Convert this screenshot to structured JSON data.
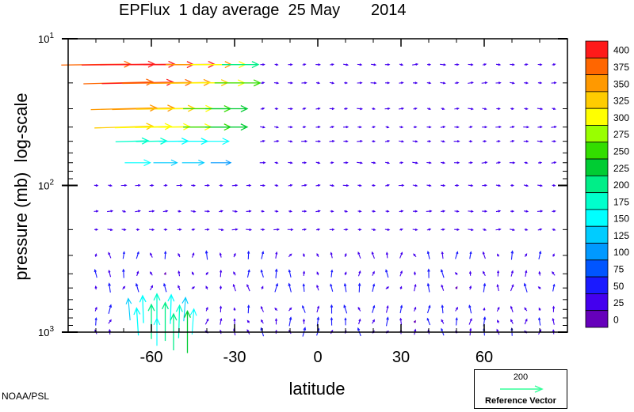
{
  "title": {
    "name": "EPFlux",
    "average": "1 day average",
    "date": "25 May",
    "year": "2014"
  },
  "credit": "NOAA/PSL",
  "reference_vector": {
    "value": "200",
    "label": "Reference Vector",
    "color": "#33ff99"
  },
  "chart_data": {
    "type": "vector field",
    "title": "EPFlux  1 day average  25 May       2014",
    "xlabel": "latitude",
    "ylabel": "pressure (mb)  log-scale",
    "x_ticks": [
      -60,
      -30,
      0,
      30,
      60
    ],
    "x_tick_labels": [
      "-60",
      "-30",
      "0",
      "30",
      "60"
    ],
    "xlim": [
      -90,
      90
    ],
    "y_scale": "log",
    "ylim": [
      1000,
      10
    ],
    "y_tick_labels": [
      {
        "base": "10",
        "exp": "1",
        "value": 10
      },
      {
        "base": "10",
        "exp": "2",
        "value": 100
      },
      {
        "base": "10",
        "exp": "3",
        "value": 1000
      }
    ],
    "colorbar": {
      "labels": [
        "400",
        "375",
        "350",
        "325",
        "300",
        "275",
        "250",
        "225",
        "200",
        "175",
        "150",
        "125",
        "100",
        "75",
        "50",
        "25",
        "0"
      ],
      "colors": [
        "#ff1a1a",
        "#ff6600",
        "#ff9900",
        "#ffcc00",
        "#ffff00",
        "#99ff00",
        "#33dd00",
        "#00cc33",
        "#00ee88",
        "#00ffcc",
        "#00ffff",
        "#00ccff",
        "#0099ff",
        "#0055ff",
        "#1a1aff",
        "#4400ee",
        "#6600bb"
      ]
    },
    "vector_rows_pressure": [
      15,
      20,
      30,
      40,
      50,
      70,
      100,
      150,
      200,
      300,
      400,
      500,
      700,
      850,
      1000
    ],
    "vector_columns_latitude": [
      -80,
      -75,
      -70,
      -65,
      -60,
      -55,
      -50,
      -45,
      -40,
      -35,
      -30,
      -25,
      -20,
      -15,
      -10,
      -5,
      0,
      5,
      10,
      15,
      20,
      25,
      30,
      35,
      40,
      45,
      50,
      55,
      60,
      65,
      70,
      75,
      80,
      85
    ],
    "strong_vectors": [
      {
        "lat": -80,
        "p": 15,
        "u": 380,
        "v": 5
      },
      {
        "lat": -72,
        "p": 15,
        "u": 400,
        "v": 5
      },
      {
        "lat": -65,
        "p": 15,
        "u": 410,
        "v": 3
      },
      {
        "lat": -58,
        "p": 15,
        "u": 400,
        "v": 0
      },
      {
        "lat": -50,
        "p": 15,
        "u": 390,
        "v": 2
      },
      {
        "lat": -43,
        "p": 15,
        "u": 360,
        "v": 0
      },
      {
        "lat": -36,
        "p": 15,
        "u": 300,
        "v": 0
      },
      {
        "lat": -28,
        "p": 15,
        "u": 200,
        "v": 0
      },
      {
        "lat": -72,
        "p": 20,
        "u": 380,
        "v": 10
      },
      {
        "lat": -65,
        "p": 20,
        "u": 390,
        "v": 8
      },
      {
        "lat": -58,
        "p": 20,
        "u": 380,
        "v": 5
      },
      {
        "lat": -50,
        "p": 20,
        "u": 340,
        "v": 5
      },
      {
        "lat": -43,
        "p": 20,
        "u": 320,
        "v": 3
      },
      {
        "lat": -36,
        "p": 20,
        "u": 290,
        "v": 0
      },
      {
        "lat": -29,
        "p": 20,
        "u": 250,
        "v": 0
      },
      {
        "lat": -70,
        "p": 30,
        "u": 360,
        "v": 10
      },
      {
        "lat": -63,
        "p": 30,
        "u": 340,
        "v": 8
      },
      {
        "lat": -55,
        "p": 30,
        "u": 320,
        "v": 5
      },
      {
        "lat": -48,
        "p": 30,
        "u": 300,
        "v": 3
      },
      {
        "lat": -40,
        "p": 30,
        "u": 260,
        "v": 0
      },
      {
        "lat": -33,
        "p": 30,
        "u": 230,
        "v": 0
      },
      {
        "lat": -70,
        "p": 40,
        "u": 320,
        "v": 10
      },
      {
        "lat": -63,
        "p": 40,
        "u": 310,
        "v": 8
      },
      {
        "lat": -56,
        "p": 40,
        "u": 300,
        "v": 5
      },
      {
        "lat": -48,
        "p": 40,
        "u": 290,
        "v": 2
      },
      {
        "lat": -40,
        "p": 40,
        "u": 260,
        "v": 0
      },
      {
        "lat": -33,
        "p": 40,
        "u": 230,
        "v": 0
      },
      {
        "lat": -67,
        "p": 50,
        "u": 180,
        "v": 5
      },
      {
        "lat": -60,
        "p": 50,
        "u": 170,
        "v": 3
      },
      {
        "lat": -52,
        "p": 50,
        "u": 160,
        "v": 2
      },
      {
        "lat": -45,
        "p": 50,
        "u": 160,
        "v": 0
      },
      {
        "lat": -37,
        "p": 50,
        "u": 150,
        "v": 0
      },
      {
        "lat": -65,
        "p": 70,
        "u": 140,
        "v": 0
      },
      {
        "lat": -55,
        "p": 70,
        "u": 130,
        "v": 0
      },
      {
        "lat": -45,
        "p": 70,
        "u": 120,
        "v": 0
      },
      {
        "lat": -35,
        "p": 70,
        "u": 110,
        "v": 0
      },
      {
        "lat": -68,
        "p": 700,
        "u": -10,
        "v": 120
      },
      {
        "lat": -63,
        "p": 700,
        "u": -5,
        "v": 150
      },
      {
        "lat": -58,
        "p": 700,
        "u": 0,
        "v": 170
      },
      {
        "lat": -53,
        "p": 700,
        "u": 5,
        "v": 160
      },
      {
        "lat": -48,
        "p": 700,
        "u": 10,
        "v": 130
      },
      {
        "lat": -65,
        "p": 850,
        "u": -10,
        "v": 150
      },
      {
        "lat": -60,
        "p": 850,
        "u": 0,
        "v": 190
      },
      {
        "lat": -55,
        "p": 850,
        "u": 0,
        "v": 210
      },
      {
        "lat": -50,
        "p": 850,
        "u": 5,
        "v": 180
      },
      {
        "lat": -45,
        "p": 850,
        "u": 10,
        "v": 140
      },
      {
        "lat": -58,
        "p": 1000,
        "u": 0,
        "v": 150
      },
      {
        "lat": -52,
        "p": 1000,
        "u": 0,
        "v": 200
      },
      {
        "lat": -47,
        "p": 1000,
        "u": 0,
        "v": 230
      }
    ]
  }
}
